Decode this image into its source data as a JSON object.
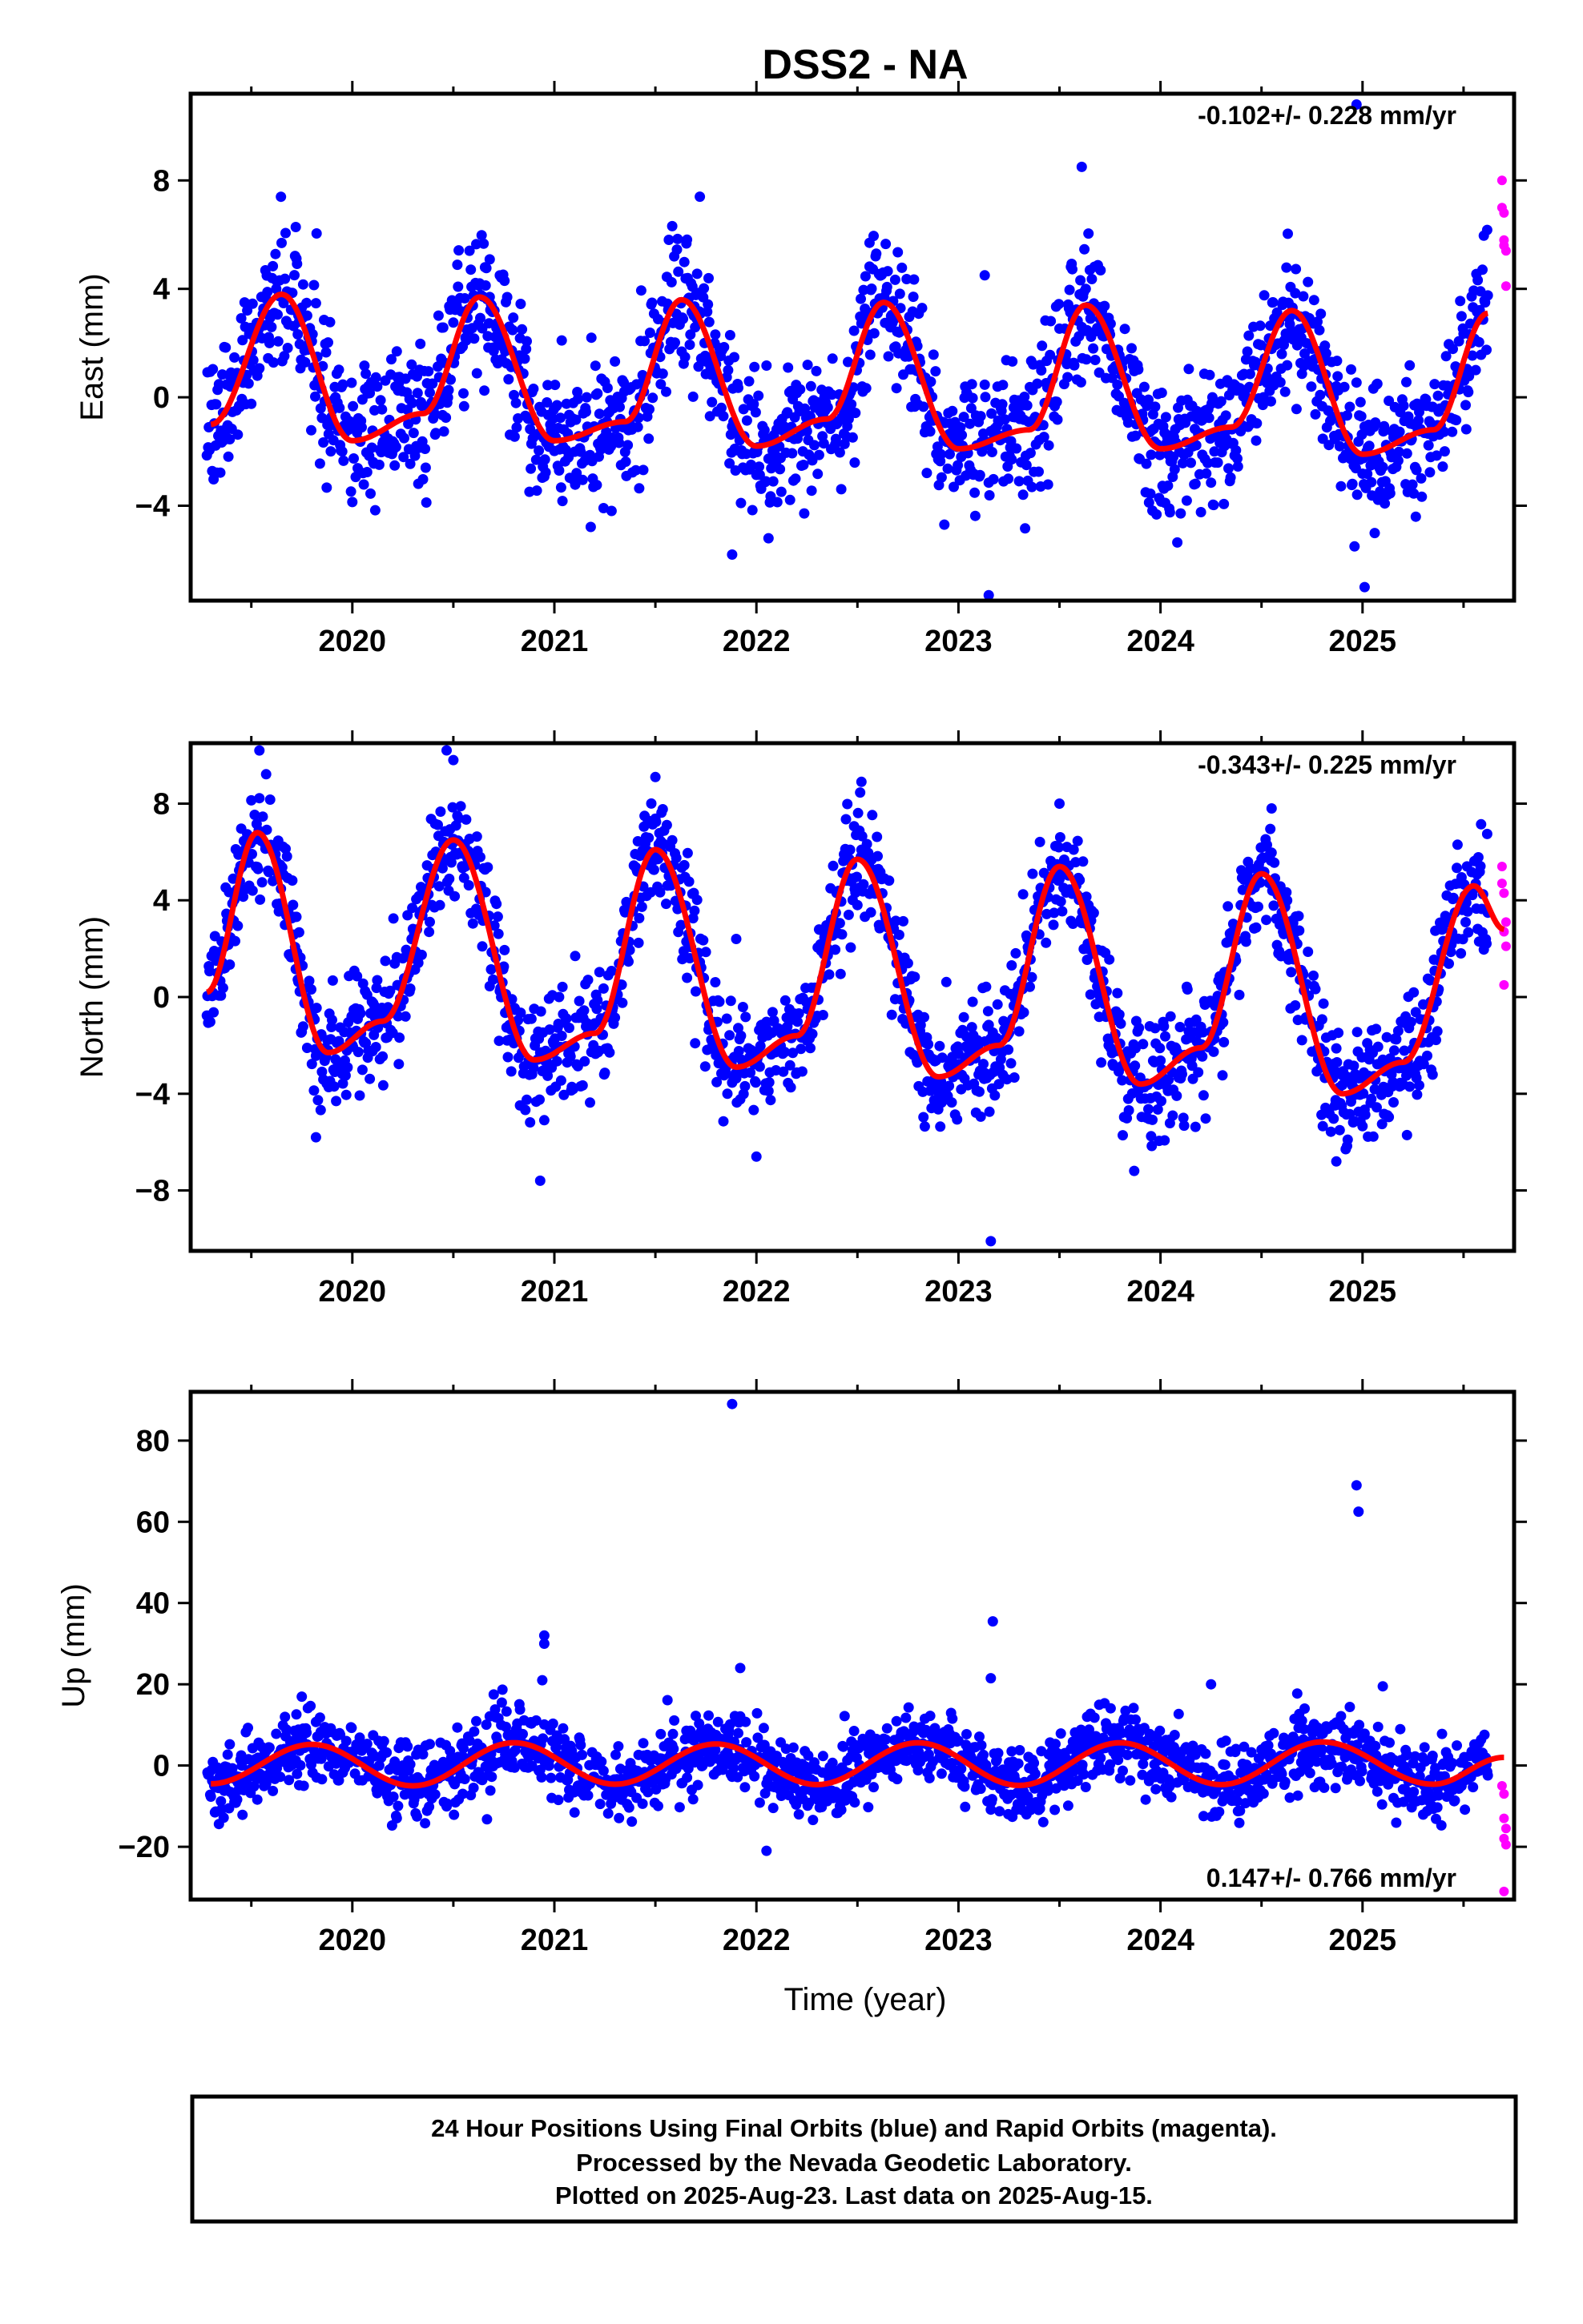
{
  "chart_data": {
    "type": "scatter",
    "title": "DSS2 - NA",
    "xlabel": "Time (year)",
    "x_range": [
      2019.2,
      2025.75
    ],
    "x_tick_labels": [
      "2020",
      "2021",
      "2022",
      "2023",
      "2024",
      "2025"
    ],
    "grid": false,
    "colors": {
      "final": "#0000ff",
      "rapid": "#ff00ff",
      "fit": "#ff0000",
      "frame": "#000000"
    },
    "panels": [
      {
        "name": "east",
        "ylabel": "East (mm)",
        "ylim": [
          -7.5,
          11.2
        ],
        "y_ticks": [
          8,
          4,
          0,
          -4
        ],
        "rate_text": "-0.102+/- 0.228 mm/yr",
        "rate_position": "top-right",
        "trend": -0.102,
        "seasonal": [
          {
            "year": 2019.3,
            "value": -1.0
          },
          {
            "year": 2019.65,
            "value": 3.8
          },
          {
            "year": 2020.0,
            "value": -1.6
          },
          {
            "year": 2020.35,
            "value": -0.6
          },
          {
            "year": 2020.63,
            "value": 3.7
          },
          {
            "year": 2021.0,
            "value": -1.6
          },
          {
            "year": 2021.35,
            "value": -0.9
          },
          {
            "year": 2021.63,
            "value": 3.6
          },
          {
            "year": 2022.0,
            "value": -1.8
          },
          {
            "year": 2022.35,
            "value": -0.8
          },
          {
            "year": 2022.63,
            "value": 3.5
          },
          {
            "year": 2023.0,
            "value": -1.9
          },
          {
            "year": 2023.35,
            "value": -1.2
          },
          {
            "year": 2023.63,
            "value": 3.4
          },
          {
            "year": 2024.0,
            "value": -1.9
          },
          {
            "year": 2024.35,
            "value": -1.1
          },
          {
            "year": 2024.65,
            "value": 3.2
          },
          {
            "year": 2025.0,
            "value": -2.1
          },
          {
            "year": 2025.35,
            "value": -1.2
          },
          {
            "year": 2025.62,
            "value": 3.1
          }
        ],
        "scatter_sd": 1.3,
        "outliers": [
          {
            "year": 2020.68,
            "value": 3.7
          },
          {
            "year": 2021.72,
            "value": 7.4
          },
          {
            "year": 2023.13,
            "value": 4.5
          },
          {
            "year": 2023.15,
            "value": -7.3
          },
          {
            "year": 2023.61,
            "value": 8.5
          },
          {
            "year": 2024.97,
            "value": 10.8
          },
          {
            "year": 2025.01,
            "value": -7.0
          },
          {
            "year": 2024.96,
            "value": -5.5
          },
          {
            "year": 2021.88,
            "value": -5.8
          },
          {
            "year": 2022.06,
            "value": -5.2
          },
          {
            "year": 2022.56,
            "value": 5.7
          }
        ],
        "rapid": [
          {
            "year": 2025.69,
            "value": 8.0
          },
          {
            "year": 2025.69,
            "value": 7.0
          },
          {
            "year": 2025.7,
            "value": 6.8
          },
          {
            "year": 2025.7,
            "value": 5.6
          },
          {
            "year": 2025.71,
            "value": 5.4
          },
          {
            "year": 2025.71,
            "value": 4.1
          },
          {
            "year": 2025.7,
            "value": 5.8
          }
        ]
      },
      {
        "name": "north",
        "ylabel": "North (mm)",
        "ylim": [
          -10.5,
          10.5
        ],
        "y_ticks": [
          8,
          4,
          0,
          -4,
          -8
        ],
        "rate_text": "-0.343+/- 0.225 mm/yr",
        "rate_position": "top-right",
        "trend": -0.343,
        "seasonal": [
          {
            "year": 2019.28,
            "value": 0.2
          },
          {
            "year": 2019.53,
            "value": 6.8
          },
          {
            "year": 2019.88,
            "value": -2.3
          },
          {
            "year": 2020.15,
            "value": -1.0
          },
          {
            "year": 2020.5,
            "value": 6.5
          },
          {
            "year": 2020.9,
            "value": -2.6
          },
          {
            "year": 2021.2,
            "value": -1.5
          },
          {
            "year": 2021.5,
            "value": 6.1
          },
          {
            "year": 2021.9,
            "value": -2.9
          },
          {
            "year": 2022.2,
            "value": -1.6
          },
          {
            "year": 2022.5,
            "value": 5.7
          },
          {
            "year": 2022.9,
            "value": -3.3
          },
          {
            "year": 2023.2,
            "value": -2.0
          },
          {
            "year": 2023.5,
            "value": 5.4
          },
          {
            "year": 2023.9,
            "value": -3.6
          },
          {
            "year": 2024.2,
            "value": -2.1
          },
          {
            "year": 2024.5,
            "value": 5.1
          },
          {
            "year": 2024.9,
            "value": -4.0
          },
          {
            "year": 2025.2,
            "value": -2.7
          },
          {
            "year": 2025.55,
            "value": 4.6
          },
          {
            "year": 2025.7,
            "value": 2.8
          }
        ],
        "scatter_sd": 1.2,
        "outliers": [
          {
            "year": 2019.54,
            "value": 10.2
          },
          {
            "year": 2020.5,
            "value": 9.8
          },
          {
            "year": 2020.93,
            "value": -7.6
          },
          {
            "year": 2021.5,
            "value": 9.1
          },
          {
            "year": 2022.0,
            "value": -6.6
          },
          {
            "year": 2022.52,
            "value": 8.9
          },
          {
            "year": 2023.16,
            "value": -10.1
          },
          {
            "year": 2023.5,
            "value": 8.0
          },
          {
            "year": 2024.55,
            "value": 7.8
          },
          {
            "year": 2024.87,
            "value": -6.8
          },
          {
            "year": 2019.82,
            "value": -5.8
          },
          {
            "year": 2021.9,
            "value": 2.4
          }
        ],
        "rapid": [
          {
            "year": 2025.69,
            "value": 5.4
          },
          {
            "year": 2025.69,
            "value": 4.7
          },
          {
            "year": 2025.7,
            "value": 4.3
          },
          {
            "year": 2025.71,
            "value": 3.1
          },
          {
            "year": 2025.7,
            "value": 2.7
          },
          {
            "year": 2025.71,
            "value": 2.1
          },
          {
            "year": 2025.7,
            "value": 0.5
          }
        ]
      },
      {
        "name": "up",
        "ylabel": "Up (mm)",
        "ylim": [
          -33,
          92
        ],
        "y_ticks": [
          80,
          60,
          40,
          20,
          0,
          -20
        ],
        "rate_text": "0.147+/- 0.766 mm/yr",
        "rate_position": "bottom-right",
        "trend": 0.147,
        "seasonal": [
          {
            "year": 2019.3,
            "value": -4.5
          },
          {
            "year": 2019.8,
            "value": 5.2
          },
          {
            "year": 2020.3,
            "value": -5.0
          },
          {
            "year": 2020.8,
            "value": 5.6
          },
          {
            "year": 2021.3,
            "value": -4.6
          },
          {
            "year": 2021.8,
            "value": 5.3
          },
          {
            "year": 2022.3,
            "value": -4.7
          },
          {
            "year": 2022.8,
            "value": 5.6
          },
          {
            "year": 2023.3,
            "value": -4.9
          },
          {
            "year": 2023.8,
            "value": 5.6
          },
          {
            "year": 2024.3,
            "value": -4.7
          },
          {
            "year": 2024.8,
            "value": 5.8
          },
          {
            "year": 2025.35,
            "value": -4.6
          },
          {
            "year": 2025.7,
            "value": 2.0
          }
        ],
        "scatter_sd": 4.5,
        "outliers": [
          {
            "year": 2021.88,
            "value": 89.0
          },
          {
            "year": 2024.97,
            "value": 69.0
          },
          {
            "year": 2024.98,
            "value": 62.5
          },
          {
            "year": 2023.17,
            "value": 35.5
          },
          {
            "year": 2020.95,
            "value": 32.0
          },
          {
            "year": 2020.95,
            "value": 30.0
          },
          {
            "year": 2023.16,
            "value": 21.5
          },
          {
            "year": 2020.94,
            "value": 21.0
          },
          {
            "year": 2021.92,
            "value": 24.0
          },
          {
            "year": 2024.25,
            "value": 20.0
          },
          {
            "year": 2025.1,
            "value": 19.5
          },
          {
            "year": 2022.05,
            "value": -21.0
          }
        ],
        "rapid": [
          {
            "year": 2025.69,
            "value": -5.0
          },
          {
            "year": 2025.7,
            "value": -7.0
          },
          {
            "year": 2025.7,
            "value": -13.0
          },
          {
            "year": 2025.71,
            "value": -15.5
          },
          {
            "year": 2025.7,
            "value": -18.0
          },
          {
            "year": 2025.71,
            "value": -19.5
          },
          {
            "year": 2025.7,
            "value": -31.0
          }
        ]
      }
    ]
  },
  "footer": {
    "line1": "24 Hour Positions Using Final Orbits (blue) and Rapid Orbits (magenta).",
    "line2": "Processed by the Nevada Geodetic Laboratory.",
    "line3": "Plotted on 2025-Aug-23. Last data on 2025-Aug-15."
  }
}
